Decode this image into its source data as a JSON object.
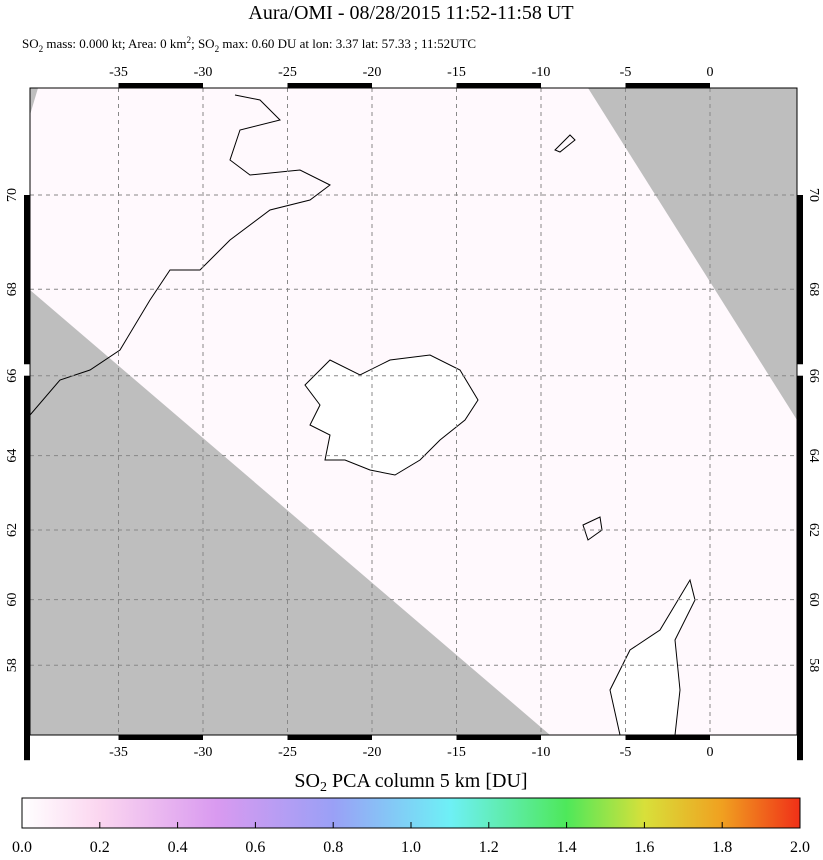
{
  "title": "Aura/OMI - 08/28/2015 11:52-11:58 UT",
  "subtitle": [
    "SO",
    "2",
    " mass: 0.000 kt; Area: 0 km",
    "2",
    "; SO",
    "2",
    " max: 0.60 DU at lon: 3.37 lat: 57.33 ; 11:52UTC"
  ],
  "map": {
    "xticks": [
      -35,
      -30,
      -25,
      -20,
      -15,
      -10,
      -5,
      0
    ],
    "yticks": [
      70,
      68,
      66,
      64,
      62,
      60,
      58
    ]
  },
  "colorbar": {
    "title": [
      "SO",
      "2",
      " PCA column 5 km [DU]"
    ],
    "lim": [
      0,
      2
    ],
    "ticks": [
      {
        "value": 0,
        "label": "0.0"
      },
      {
        "value": 0.2,
        "label": "0.2"
      },
      {
        "value": 0.4,
        "label": "0.4"
      },
      {
        "value": 0.6,
        "label": "0.6"
      },
      {
        "value": 0.8,
        "label": "0.8"
      },
      {
        "value": 1,
        "label": "1.0"
      },
      {
        "value": 1.2,
        "label": "1.2"
      },
      {
        "value": 1.4,
        "label": "1.4"
      },
      {
        "value": 1.6,
        "label": "1.6"
      },
      {
        "value": 1.8,
        "label": "1.8"
      },
      {
        "value": 2,
        "label": "2.0"
      }
    ]
  }
}
